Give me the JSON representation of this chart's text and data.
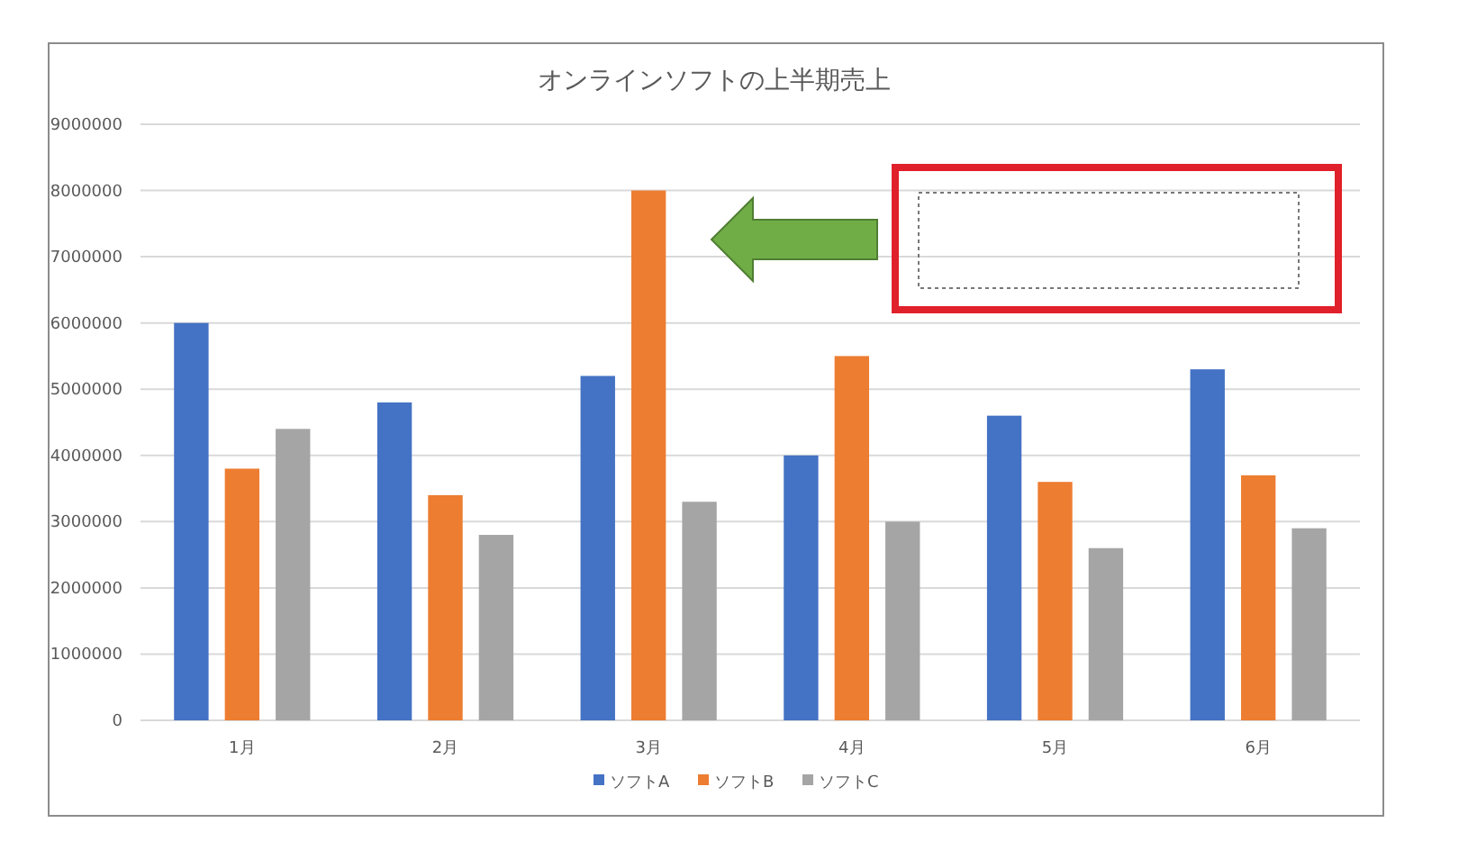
{
  "chart_data": {
    "type": "bar",
    "title": "オンラインソフトの上半期売上",
    "categories": [
      "1月",
      "2月",
      "3月",
      "4月",
      "5月",
      "6月"
    ],
    "series": [
      {
        "name": "ソフトA",
        "color": "#4472c4",
        "values": [
          6000000,
          4800000,
          5200000,
          4000000,
          4600000,
          5300000
        ]
      },
      {
        "name": "ソフトB",
        "color": "#ed7d31",
        "values": [
          3800000,
          3400000,
          8000000,
          5500000,
          3600000,
          3700000
        ]
      },
      {
        "name": "ソフトC",
        "color": "#a5a5a5",
        "values": [
          4400000,
          2800000,
          3300000,
          3000000,
          2600000,
          2900000
        ]
      }
    ],
    "ylim": [
      0,
      9000000
    ],
    "yticks": [
      0,
      1000000,
      2000000,
      3000000,
      4000000,
      5000000,
      6000000,
      7000000,
      8000000,
      9000000
    ],
    "grid": "y",
    "legend": "bottom"
  }
}
